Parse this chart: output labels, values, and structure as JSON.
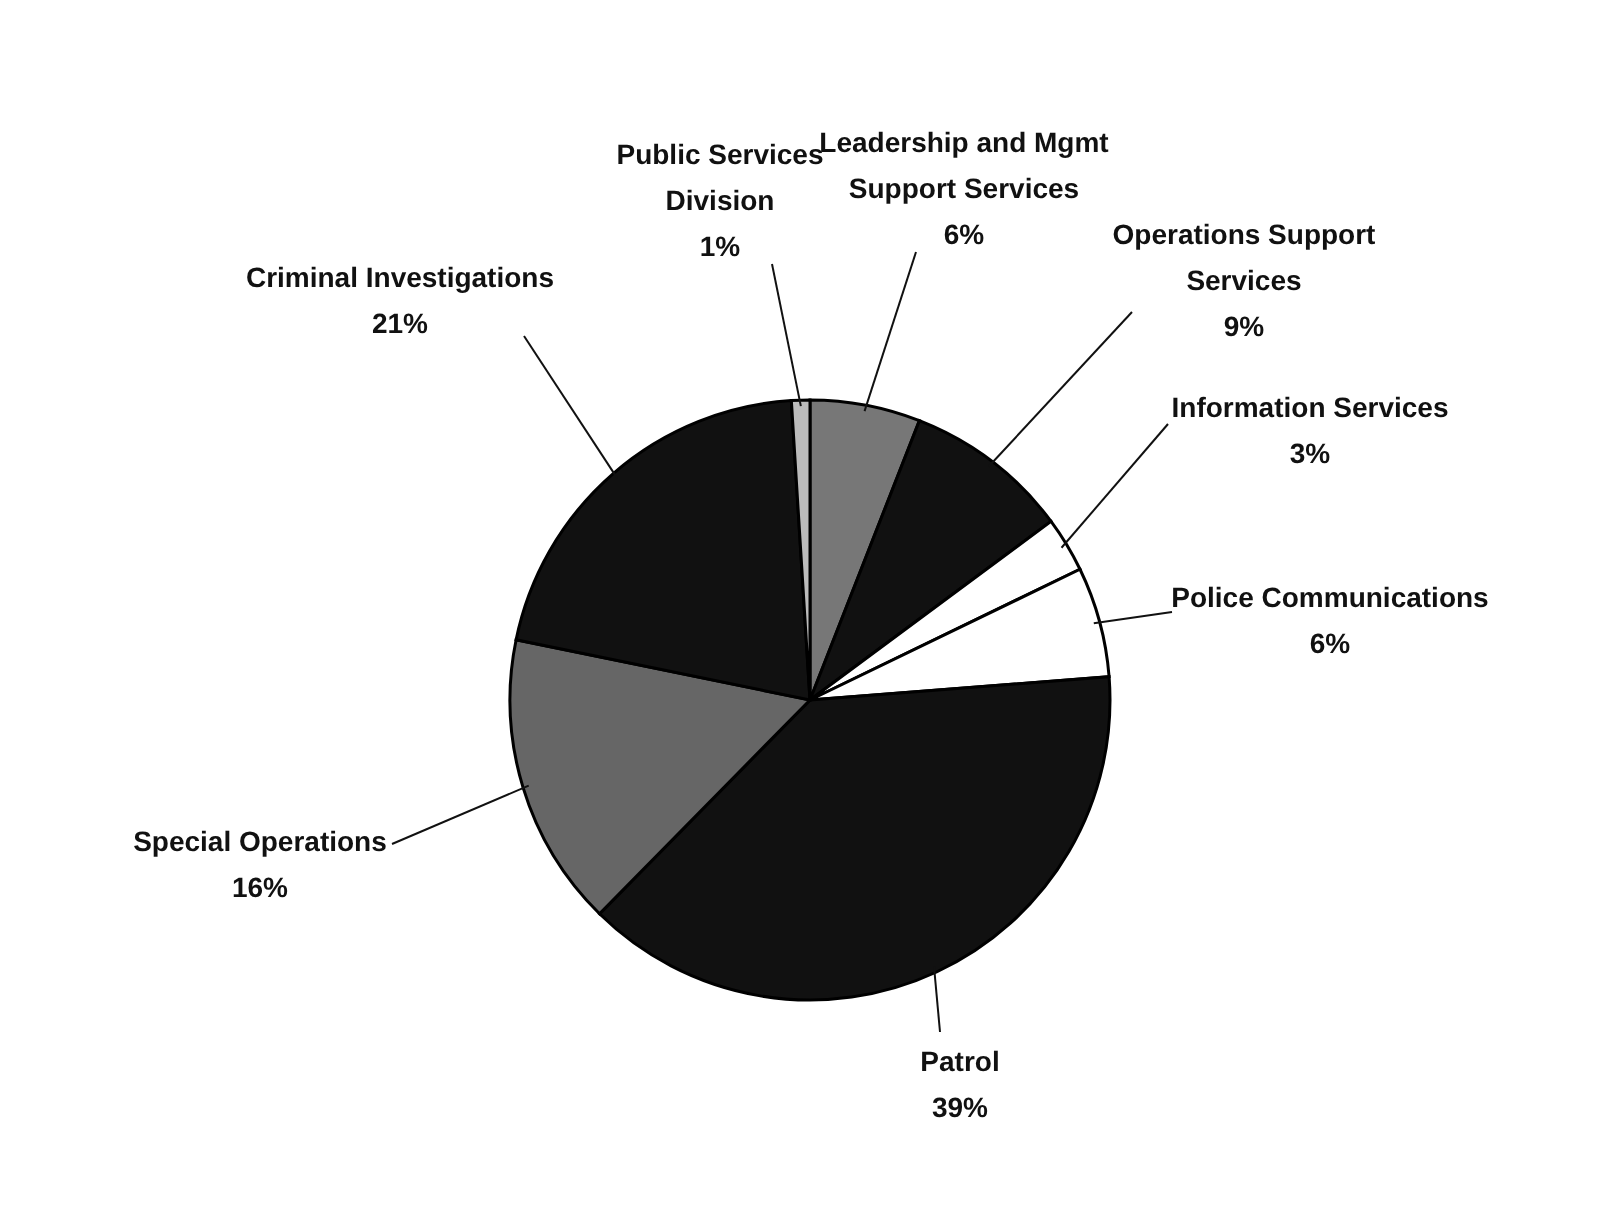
{
  "chart_data": {
    "type": "pie",
    "categories": [
      "Leadership and Mgmt Support Services",
      "Operations Support Services",
      "Information Services",
      "Police Communications",
      "Patrol",
      "Special Operations",
      "Criminal Investigations",
      "Public Services Division"
    ],
    "values": [
      6,
      9,
      3,
      6,
      39,
      16,
      21,
      1
    ],
    "colors": [
      "#777777",
      "#111111",
      "#ffffff",
      "#ffffff",
      "#111111",
      "#666666",
      "#111111",
      "#bbbbbb"
    ],
    "value_labels": [
      "6%",
      "9%",
      "3%",
      "6%",
      "39%",
      "16%",
      "21%",
      "1%"
    ],
    "legend": false
  }
}
